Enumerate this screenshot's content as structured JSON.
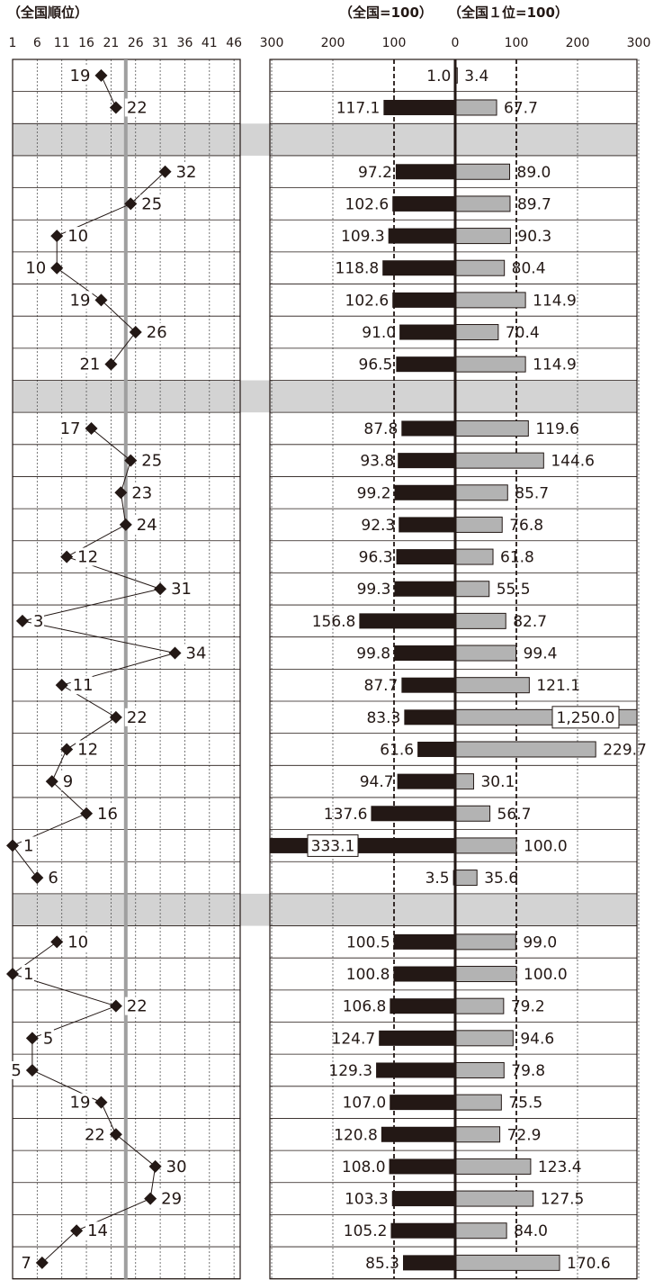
{
  "headers": {
    "rank": "（全国順位）",
    "national": "（全国=100）",
    "top": "（全国１位=100）"
  },
  "rank_axis_ticks": [
    "1",
    "6",
    "11",
    "16",
    "21",
    "26",
    "31",
    "36",
    "41",
    "46"
  ],
  "index_axis_ticks": [
    "300",
    "200",
    "100",
    "0",
    "100",
    "200",
    "300"
  ],
  "colors": {
    "dark": "#231815",
    "light": "#b3b3b3",
    "section": "#d3d3d3",
    "midline": "#9f9f9f"
  },
  "chart_data": {
    "type": "line+bar",
    "rows": [
      {
        "rank": 19,
        "national": 1.0,
        "national_label": "1.0",
        "top": 3.4,
        "top_label": "3.4"
      },
      {
        "rank": 22,
        "national": 117.1,
        "national_label": "117.1",
        "top": 67.7,
        "top_label": "67.7"
      },
      {
        "section": true
      },
      {
        "rank": 32,
        "national": 97.2,
        "national_label": "97.2",
        "top": 89.0,
        "top_label": "89.0"
      },
      {
        "rank": 25,
        "national": 102.6,
        "national_label": "102.6",
        "top": 89.7,
        "top_label": "89.7"
      },
      {
        "rank": 10,
        "national": 109.3,
        "national_label": "109.3",
        "top": 90.3,
        "top_label": "90.3"
      },
      {
        "rank": 10,
        "national": 118.8,
        "national_label": "118.8",
        "top": 80.4,
        "top_label": "80.4"
      },
      {
        "rank": 19,
        "national": 102.6,
        "national_label": "102.6",
        "top": 114.9,
        "top_label": "114.9"
      },
      {
        "rank": 26,
        "national": 91.0,
        "national_label": "91.0",
        "top": 70.4,
        "top_label": "70.4"
      },
      {
        "rank": 21,
        "national": 96.5,
        "national_label": "96.5",
        "top": 114.9,
        "top_label": "114.9"
      },
      {
        "section": true
      },
      {
        "rank": 17,
        "national": 87.8,
        "national_label": "87.8",
        "top": 119.6,
        "top_label": "119.6"
      },
      {
        "rank": 25,
        "national": 93.8,
        "national_label": "93.8",
        "top": 144.6,
        "top_label": "144.6"
      },
      {
        "rank": 23,
        "national": 99.2,
        "national_label": "99.2",
        "top": 85.7,
        "top_label": "85.7"
      },
      {
        "rank": 24,
        "national": 92.3,
        "national_label": "92.3",
        "top": 76.8,
        "top_label": "76.8"
      },
      {
        "rank": 12,
        "national": 96.3,
        "national_label": "96.3",
        "top": 61.8,
        "top_label": "61.8"
      },
      {
        "rank": 31,
        "national": 99.3,
        "national_label": "99.3",
        "top": 55.5,
        "top_label": "55.5"
      },
      {
        "rank": 3,
        "national": 156.8,
        "national_label": "156.8",
        "top": 82.7,
        "top_label": "82.7"
      },
      {
        "rank": 34,
        "national": 99.8,
        "national_label": "99.8",
        "top": 99.4,
        "top_label": "99.4"
      },
      {
        "rank": 11,
        "national": 87.7,
        "national_label": "87.7",
        "top": 121.1,
        "top_label": "121.1"
      },
      {
        "rank": 22,
        "national": 83.3,
        "national_label": "83.3",
        "top": 1250.0,
        "top_label": "1,250.0"
      },
      {
        "rank": 12,
        "national": 61.6,
        "national_label": "61.6",
        "top": 229.7,
        "top_label": "229.7"
      },
      {
        "rank": 9,
        "national": 94.7,
        "national_label": "94.7",
        "top": 30.1,
        "top_label": "30.1"
      },
      {
        "rank": 16,
        "national": 137.6,
        "national_label": "137.6",
        "top": 56.7,
        "top_label": "56.7"
      },
      {
        "rank": 1,
        "national": 333.1,
        "national_label": "333.1",
        "top": 100.0,
        "top_label": "100.0"
      },
      {
        "rank": 6,
        "national": 3.5,
        "national_label": "3.5",
        "top": 35.6,
        "top_label": "35.6"
      },
      {
        "section": true
      },
      {
        "rank": 10,
        "national": 100.5,
        "national_label": "100.5",
        "top": 99.0,
        "top_label": "99.0"
      },
      {
        "rank": 1,
        "national": 100.8,
        "national_label": "100.8",
        "top": 100.0,
        "top_label": "100.0"
      },
      {
        "rank": 22,
        "national": 106.8,
        "national_label": "106.8",
        "top": 79.2,
        "top_label": "79.2"
      },
      {
        "rank": 5,
        "national": 124.7,
        "national_label": "124.7",
        "top": 94.6,
        "top_label": "94.6"
      },
      {
        "rank": 5,
        "national": 129.3,
        "national_label": "129.3",
        "top": 79.8,
        "top_label": "79.8"
      },
      {
        "rank": 19,
        "national": 107.0,
        "national_label": "107.0",
        "top": 75.5,
        "top_label": "75.5"
      },
      {
        "rank": 22,
        "national": 120.8,
        "national_label": "120.8",
        "top": 72.9,
        "top_label": "72.9"
      },
      {
        "rank": 30,
        "national": 108.0,
        "national_label": "108.0",
        "top": 123.4,
        "top_label": "123.4"
      },
      {
        "rank": 29,
        "national": 103.3,
        "national_label": "103.3",
        "top": 127.5,
        "top_label": "127.5"
      },
      {
        "rank": 14,
        "national": 105.2,
        "national_label": "105.2",
        "top": 84.0,
        "top_label": "84.0"
      },
      {
        "rank": 7,
        "national": 85.3,
        "national_label": "85.3",
        "top": 170.6,
        "top_label": "170.6"
      }
    ],
    "rank_axis": {
      "min": 1,
      "max": 47,
      "reference_rank": 24,
      "grid": true
    },
    "index_axis": {
      "min": -300,
      "max": 300,
      "reference": 100,
      "grid": true
    }
  }
}
